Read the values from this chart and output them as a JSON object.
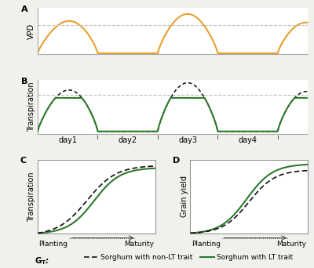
{
  "vpd_color": "#E8A030",
  "lt_color": "#2D7A2D",
  "non_lt_color": "#111111",
  "background_color": "#F0F0EC",
  "panel_bg": "#FFFFFF",
  "dashed_line_color": "#C0C0C0",
  "title_a": "A",
  "title_b": "B",
  "title_c": "C",
  "title_d": "D",
  "ylabel_a": "VPD",
  "ylabel_b": "Transpiration",
  "ylabel_c": "Transpiration",
  "ylabel_d": "Grain yield",
  "xlabel_c_left": "Planting",
  "xlabel_c_right": "Maturity",
  "xlabel_d_left": "Planting",
  "xlabel_d_right": "Maturity",
  "xtick_labels": [
    "day1",
    "day2",
    "day3",
    "day4"
  ],
  "legend_label_dashed": "Sorghum with non-LT trait",
  "legend_label_solid": "Sorghum with LT trait"
}
